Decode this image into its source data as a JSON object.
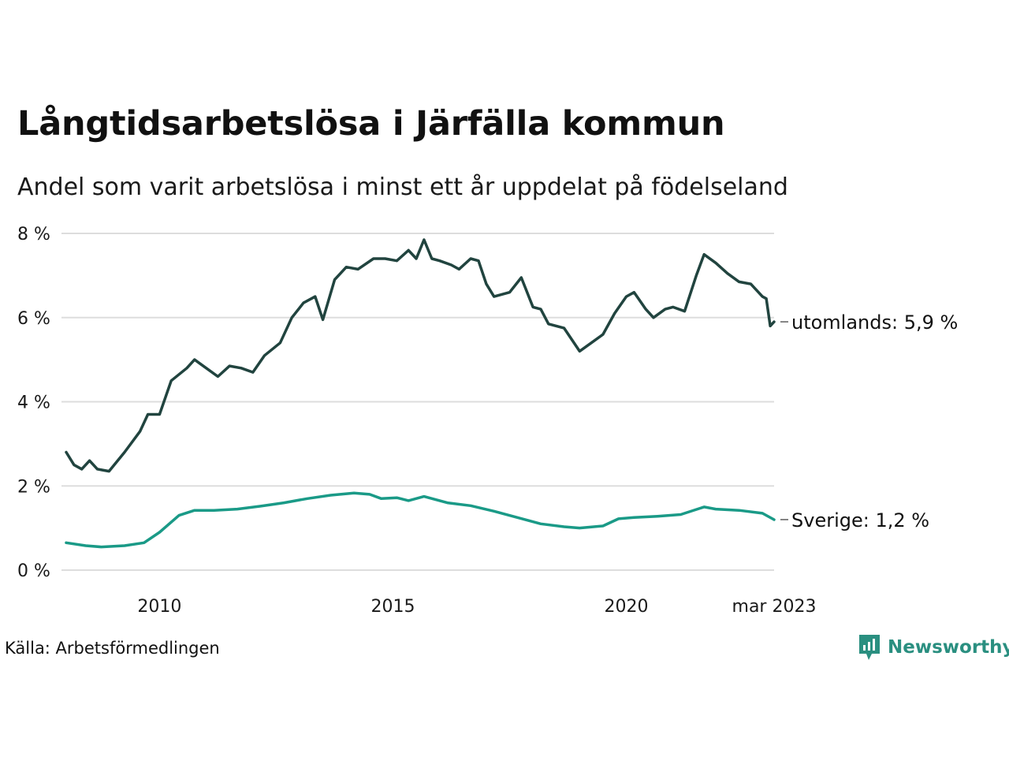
{
  "title": "Långtidsarbetslösa i Järfälla kommun",
  "subtitle": "Andel som varit arbetslösa i minst ett år uppdelat på födelseland",
  "source": "Källa: Arbetsförmedlingen",
  "brand": {
    "name": "Newsworthy",
    "icon": "newsworthy-logo-icon",
    "color": "#2a8f80"
  },
  "colors": {
    "utomlands": "#21443f",
    "sverige": "#1a9a87",
    "grid": "#dddddd",
    "axis_text": "#1a1a1a"
  },
  "chart_data": {
    "type": "line",
    "x_start": "2008-01",
    "x_end": "2023-03",
    "x_ticks": [
      {
        "date": "2010-01",
        "label": "2010"
      },
      {
        "date": "2015-01",
        "label": "2015"
      },
      {
        "date": "2020-01",
        "label": "2020"
      },
      {
        "date": "2023-03",
        "label": "mar 2023"
      }
    ],
    "y_ticks": [
      {
        "value": 0,
        "label": "0 %"
      },
      {
        "value": 2,
        "label": "2 %"
      },
      {
        "value": 4,
        "label": "4 %"
      },
      {
        "value": 6,
        "label": "6 %"
      },
      {
        "value": 8,
        "label": "8 %"
      }
    ],
    "ylim": [
      0,
      8
    ],
    "grid": true,
    "series": [
      {
        "name": "utomlands",
        "end_label": "utomlands: 5,9 %",
        "color": "#21443f",
        "anchors": [
          [
            "2008-01",
            2.8
          ],
          [
            "2008-03",
            2.5
          ],
          [
            "2008-05",
            2.4
          ],
          [
            "2008-07",
            2.6
          ],
          [
            "2008-09",
            2.4
          ],
          [
            "2008-12",
            2.35
          ],
          [
            "2009-04",
            2.8
          ],
          [
            "2009-08",
            3.3
          ],
          [
            "2009-10",
            3.7
          ],
          [
            "2010-01",
            3.7
          ],
          [
            "2010-04",
            4.5
          ],
          [
            "2010-08",
            4.8
          ],
          [
            "2010-10",
            5.0
          ],
          [
            "2011-01",
            4.8
          ],
          [
            "2011-04",
            4.6
          ],
          [
            "2011-07",
            4.85
          ],
          [
            "2011-10",
            4.8
          ],
          [
            "2012-01",
            4.7
          ],
          [
            "2012-04",
            5.1
          ],
          [
            "2012-08",
            5.4
          ],
          [
            "2012-11",
            6.0
          ],
          [
            "2013-02",
            6.35
          ],
          [
            "2013-05",
            6.5
          ],
          [
            "2013-07",
            5.95
          ],
          [
            "2013-10",
            6.9
          ],
          [
            "2014-01",
            7.2
          ],
          [
            "2014-04",
            7.15
          ],
          [
            "2014-08",
            7.4
          ],
          [
            "2014-11",
            7.4
          ],
          [
            "2015-02",
            7.35
          ],
          [
            "2015-05",
            7.6
          ],
          [
            "2015-07",
            7.4
          ],
          [
            "2015-09",
            7.85
          ],
          [
            "2015-11",
            7.4
          ],
          [
            "2016-01",
            7.35
          ],
          [
            "2016-04",
            7.25
          ],
          [
            "2016-06",
            7.15
          ],
          [
            "2016-09",
            7.4
          ],
          [
            "2016-11",
            7.35
          ],
          [
            "2017-01",
            6.8
          ],
          [
            "2017-03",
            6.5
          ],
          [
            "2017-07",
            6.6
          ],
          [
            "2017-10",
            6.95
          ],
          [
            "2018-01",
            6.25
          ],
          [
            "2018-03",
            6.2
          ],
          [
            "2018-05",
            5.85
          ],
          [
            "2018-09",
            5.75
          ],
          [
            "2019-01",
            5.2
          ],
          [
            "2019-04",
            5.4
          ],
          [
            "2019-07",
            5.6
          ],
          [
            "2019-10",
            6.1
          ],
          [
            "2020-01",
            6.5
          ],
          [
            "2020-03",
            6.6
          ],
          [
            "2020-06",
            6.2
          ],
          [
            "2020-08",
            6.0
          ],
          [
            "2020-11",
            6.2
          ],
          [
            "2021-01",
            6.25
          ],
          [
            "2021-04",
            6.15
          ],
          [
            "2021-07",
            7.0
          ],
          [
            "2021-09",
            7.5
          ],
          [
            "2021-12",
            7.3
          ],
          [
            "2022-03",
            7.05
          ],
          [
            "2022-06",
            6.85
          ],
          [
            "2022-09",
            6.8
          ],
          [
            "2022-12",
            6.5
          ],
          [
            "2023-01",
            6.45
          ],
          [
            "2023-02",
            5.8
          ],
          [
            "2023-03",
            5.9
          ]
        ]
      },
      {
        "name": "Sverige",
        "end_label": "Sverige: 1,2 %",
        "color": "#1a9a87",
        "anchors": [
          [
            "2008-01",
            0.65
          ],
          [
            "2008-06",
            0.58
          ],
          [
            "2008-10",
            0.55
          ],
          [
            "2009-04",
            0.58
          ],
          [
            "2009-09",
            0.65
          ],
          [
            "2010-01",
            0.9
          ],
          [
            "2010-06",
            1.3
          ],
          [
            "2010-10",
            1.42
          ],
          [
            "2011-03",
            1.42
          ],
          [
            "2011-09",
            1.45
          ],
          [
            "2012-03",
            1.52
          ],
          [
            "2012-09",
            1.6
          ],
          [
            "2013-03",
            1.7
          ],
          [
            "2013-09",
            1.78
          ],
          [
            "2014-03",
            1.83
          ],
          [
            "2014-07",
            1.8
          ],
          [
            "2014-10",
            1.7
          ],
          [
            "2015-02",
            1.72
          ],
          [
            "2015-05",
            1.65
          ],
          [
            "2015-09",
            1.75
          ],
          [
            "2016-03",
            1.6
          ],
          [
            "2016-09",
            1.53
          ],
          [
            "2017-03",
            1.4
          ],
          [
            "2017-09",
            1.25
          ],
          [
            "2018-03",
            1.1
          ],
          [
            "2018-09",
            1.03
          ],
          [
            "2019-01",
            1.0
          ],
          [
            "2019-07",
            1.05
          ],
          [
            "2019-11",
            1.22
          ],
          [
            "2020-03",
            1.25
          ],
          [
            "2020-09",
            1.28
          ],
          [
            "2021-03",
            1.32
          ],
          [
            "2021-09",
            1.5
          ],
          [
            "2021-12",
            1.45
          ],
          [
            "2022-06",
            1.42
          ],
          [
            "2022-12",
            1.35
          ],
          [
            "2023-03",
            1.2
          ]
        ]
      }
    ]
  }
}
